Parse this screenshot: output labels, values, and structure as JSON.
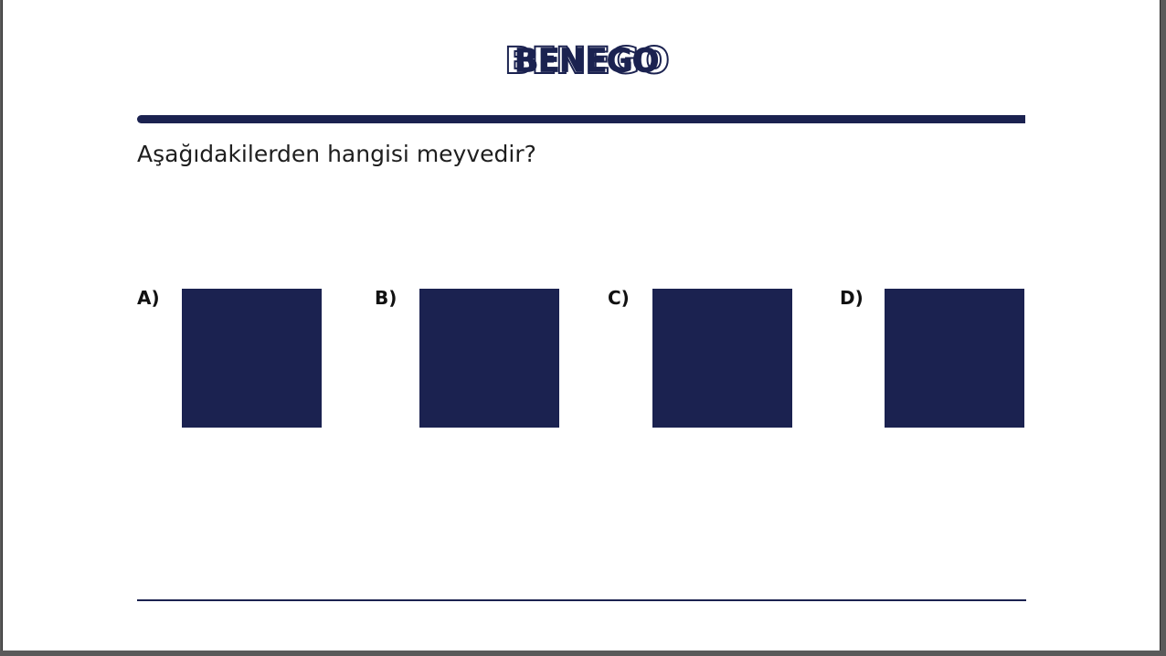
{
  "brand": {
    "logo_text": "BENEGO",
    "color": "#1b2250"
  },
  "question": {
    "text": "Aşağıdakilerden hangisi meyvedir?"
  },
  "options": [
    {
      "label": "A)"
    },
    {
      "label": "B)"
    },
    {
      "label": "C)"
    },
    {
      "label": "D)"
    }
  ]
}
